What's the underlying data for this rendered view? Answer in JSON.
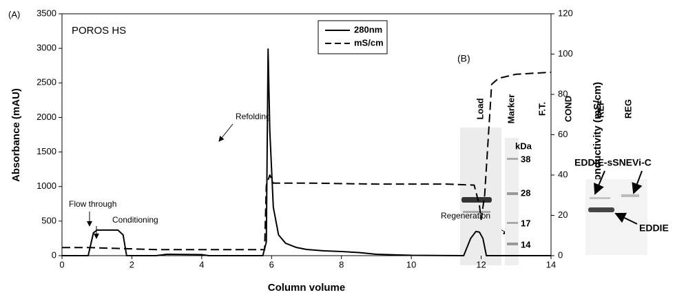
{
  "panel_label": "(A)",
  "chart_data": {
    "type": "line",
    "title": "POROS HS",
    "xlabel": "Column volume",
    "ylabel": "Absorbance (mAU)",
    "y2label": "Conductivity (mS/cm)",
    "xlim": [
      0,
      14
    ],
    "xticks": [
      0,
      2,
      4,
      6,
      8,
      10,
      12,
      14
    ],
    "ylim": [
      0,
      3500
    ],
    "yticks": [
      0,
      500,
      1000,
      1500,
      2000,
      2500,
      3000,
      3500
    ],
    "y2lim": [
      0,
      120
    ],
    "y2ticks": [
      0,
      20,
      40,
      60,
      80,
      100,
      120
    ],
    "legend": "top-right",
    "series": [
      {
        "name": "280nm",
        "color": "#000000",
        "dash": false,
        "x": [
          0,
          0.75,
          0.9,
          1.0,
          1.6,
          1.75,
          1.85,
          2.7,
          3.0,
          4.0,
          4.2,
          5.75,
          5.85,
          5.9,
          5.95,
          6.05,
          6.2,
          6.4,
          6.7,
          7.0,
          7.5,
          8.0,
          8.5,
          9.0,
          10.0,
          11.5,
          11.7,
          11.85,
          11.95,
          12.05,
          12.15,
          12.3,
          14
        ],
        "values": [
          0,
          0,
          330,
          370,
          370,
          300,
          0,
          0,
          20,
          15,
          0,
          0,
          200,
          2990,
          1800,
          700,
          300,
          180,
          120,
          90,
          70,
          60,
          45,
          20,
          5,
          0,
          250,
          350,
          340,
          250,
          0,
          0,
          0
        ]
      },
      {
        "name": "mS/cm",
        "color": "#000000",
        "dash": true,
        "axis": "y2",
        "x": [
          0,
          0.8,
          2.7,
          5.8,
          5.85,
          5.95,
          6.05,
          7.0,
          9.0,
          11.0,
          11.8,
          11.95,
          12.0,
          12.1,
          12.3,
          12.5,
          13.0,
          14
        ],
        "values": [
          4,
          4,
          3,
          3,
          35,
          40,
          36,
          36,
          35.5,
          35.5,
          35,
          25,
          18,
          30,
          85,
          88,
          90,
          91
        ]
      }
    ],
    "annotations": [
      "Flow through",
      "Conditioning",
      "Refolding",
      "Regeneration"
    ]
  },
  "panel_b": {
    "label": "(B)",
    "lanes": [
      "Load",
      "Marker",
      "F.T.",
      "COND",
      "REF",
      "REG"
    ],
    "marker_unit": "kDa",
    "marker_sizes": [
      "38",
      "28",
      "17",
      "14"
    ],
    "band_labels": [
      "EDDIE-sSNEVi-C",
      "EDDIE"
    ]
  }
}
